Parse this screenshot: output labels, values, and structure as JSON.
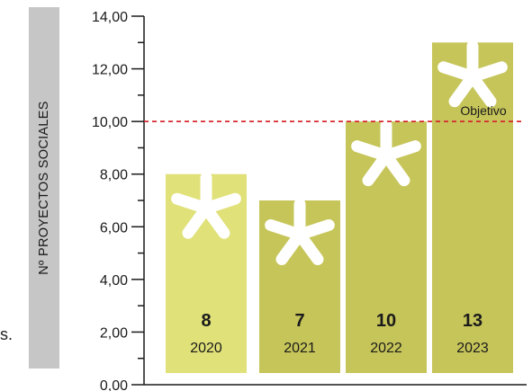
{
  "page": {
    "stray_text": "s."
  },
  "chart_data": {
    "type": "bar",
    "title": "",
    "xlabel": "",
    "ylabel": "Nº PROYECTOS SOCIALES",
    "ylim": [
      0,
      14
    ],
    "yticks": [
      0,
      2,
      4,
      6,
      8,
      10,
      12,
      14
    ],
    "ytick_labels": [
      "0,00",
      "2,00",
      "4,00",
      "6,00",
      "8,00",
      "10,00",
      "12,00",
      "14,00"
    ],
    "categories": [
      "2020",
      "2021",
      "2022",
      "2023"
    ],
    "values": [
      8,
      7,
      10,
      13
    ],
    "value_labels": [
      "8",
      "7",
      "10",
      "13"
    ],
    "colors": {
      "bars": [
        "#e0e178",
        "#c6c55a",
        "#c6c55a",
        "#c6c55a"
      ],
      "target_line": "#d7282f",
      "axis": "#1a1a1a"
    },
    "target": {
      "value": 10,
      "label": "Objetivo"
    },
    "bar_icon": "asterisk-icon",
    "grid": false
  }
}
